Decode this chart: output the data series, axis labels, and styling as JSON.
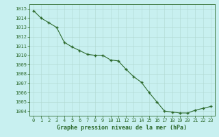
{
  "x": [
    0,
    1,
    2,
    3,
    4,
    5,
    6,
    7,
    8,
    9,
    10,
    11,
    12,
    13,
    14,
    15,
    16,
    17,
    18,
    19,
    20,
    21,
    22,
    23
  ],
  "y": [
    1014.8,
    1014.0,
    1013.5,
    1013.0,
    1011.4,
    1010.9,
    1010.5,
    1010.1,
    1010.0,
    1010.0,
    1009.5,
    1009.4,
    1008.5,
    1007.7,
    1007.1,
    1006.0,
    1005.0,
    1004.0,
    1003.9,
    1003.8,
    1003.8,
    1004.1,
    1004.3,
    1004.5
  ],
  "line_color": "#2d6a2d",
  "marker": "+",
  "marker_size": 3.5,
  "marker_lw": 1.0,
  "line_width": 0.8,
  "bg_color": "#c8f0f0",
  "grid_color": "#b0d8d0",
  "ylabel_ticks": [
    1004,
    1005,
    1006,
    1007,
    1008,
    1009,
    1010,
    1011,
    1012,
    1013,
    1014,
    1015
  ],
  "ylim": [
    1003.5,
    1015.5
  ],
  "xlim": [
    -0.5,
    23.5
  ],
  "xlabel": "Graphe pression niveau de la mer (hPa)",
  "xlabel_color": "#2d6a2d",
  "tick_color": "#2d6a2d",
  "tick_fontsize": 5.0,
  "xlabel_fontsize": 6.0,
  "spine_color": "#2d6a2d"
}
